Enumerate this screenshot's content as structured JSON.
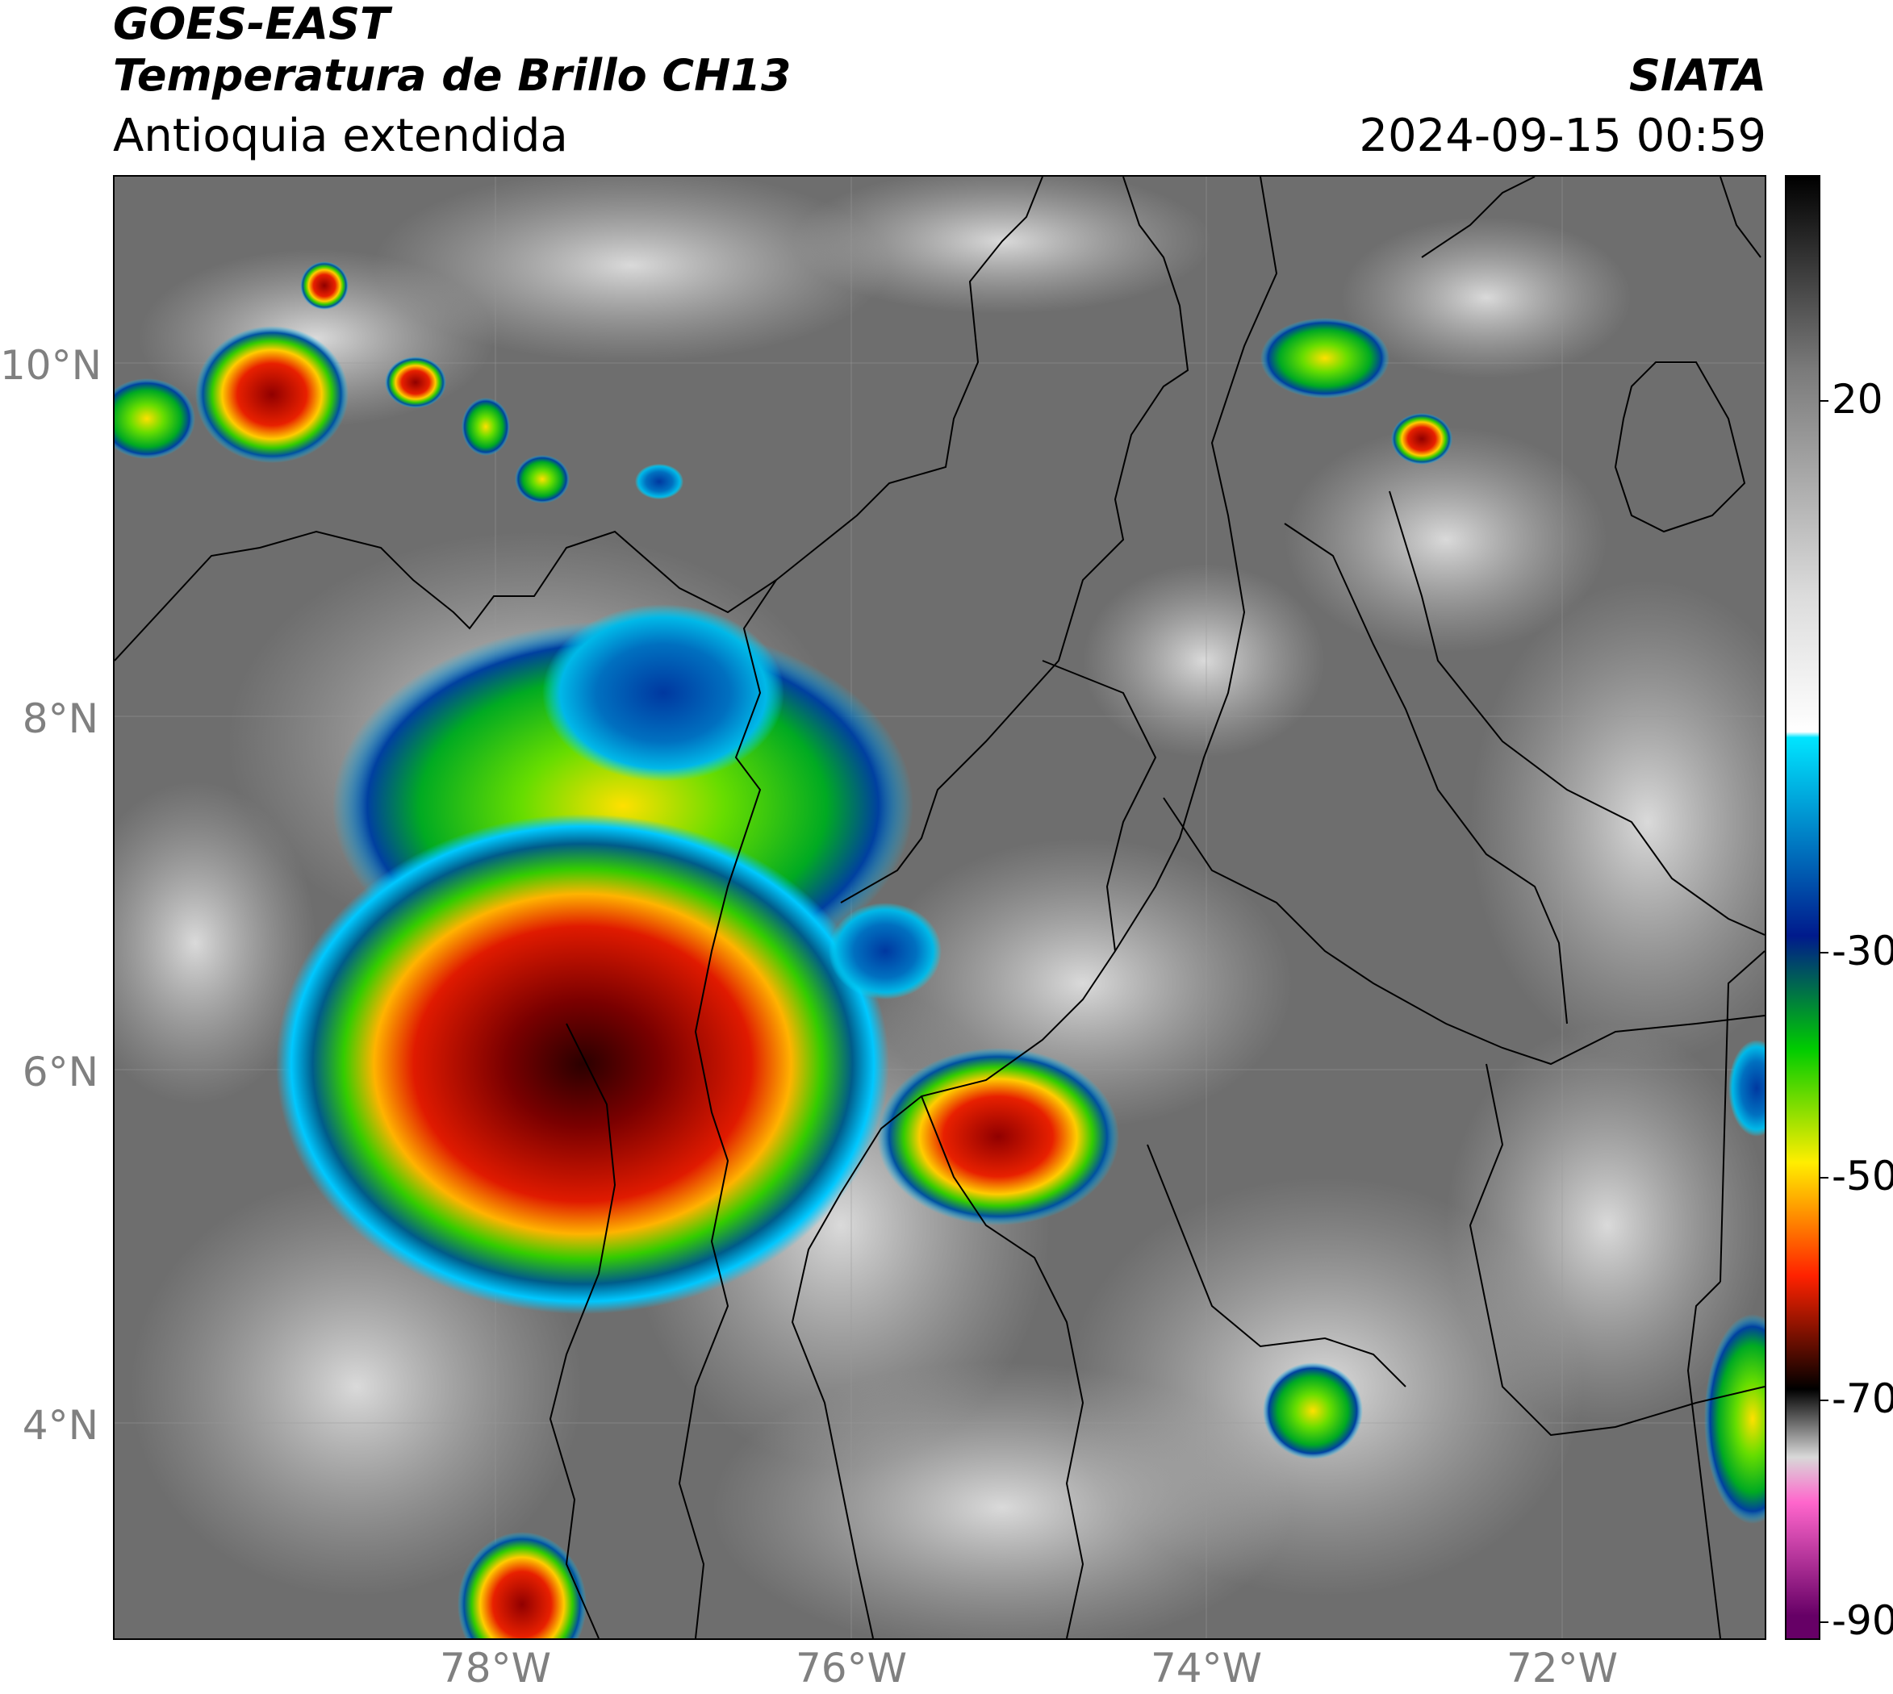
{
  "header": {
    "satellite": "GOES-EAST",
    "product": "Temperatura de Brillo CH13",
    "region": "Antioquia extendida",
    "organization": "SIATA",
    "datetime": "2024-09-15 00:59"
  },
  "map": {
    "latitude_labels": [
      "10°N",
      "8°N",
      "6°N",
      "4°N"
    ],
    "longitude_labels": [
      "78°W",
      "76°W",
      "74°W",
      "72°W"
    ],
    "lon_range": [
      -80.2,
      -70.9
    ],
    "lat_range": [
      2.75,
      11.05
    ],
    "gridlines": true
  },
  "colorbar": {
    "tick_labels": [
      "20",
      "-30",
      "-50",
      "-70",
      "-90"
    ],
    "range_celsius": [
      -92,
      37
    ],
    "stops": [
      {
        "value": 37,
        "color": "#000000"
      },
      {
        "value": 20,
        "color": "#7a7a7a"
      },
      {
        "value": 0,
        "color": "#dcdcdc"
      },
      {
        "value": -12,
        "color": "#ffffff"
      },
      {
        "value": -12.5,
        "color": "#00e5ff"
      },
      {
        "value": -30,
        "color": "#001a8c"
      },
      {
        "value": -40,
        "color": "#00cc00"
      },
      {
        "value": -50,
        "color": "#ffee00"
      },
      {
        "value": -60,
        "color": "#ff2200"
      },
      {
        "value": -70,
        "color": "#000000"
      },
      {
        "value": -76,
        "color": "#d8d8d8"
      },
      {
        "value": -80,
        "color": "#ff66cc"
      },
      {
        "value": -90,
        "color": "#660066"
      }
    ]
  },
  "colors": {
    "text_primary": "#000000",
    "axis_label": "#808080",
    "background_cloud_gray": "#6b6b6b"
  }
}
